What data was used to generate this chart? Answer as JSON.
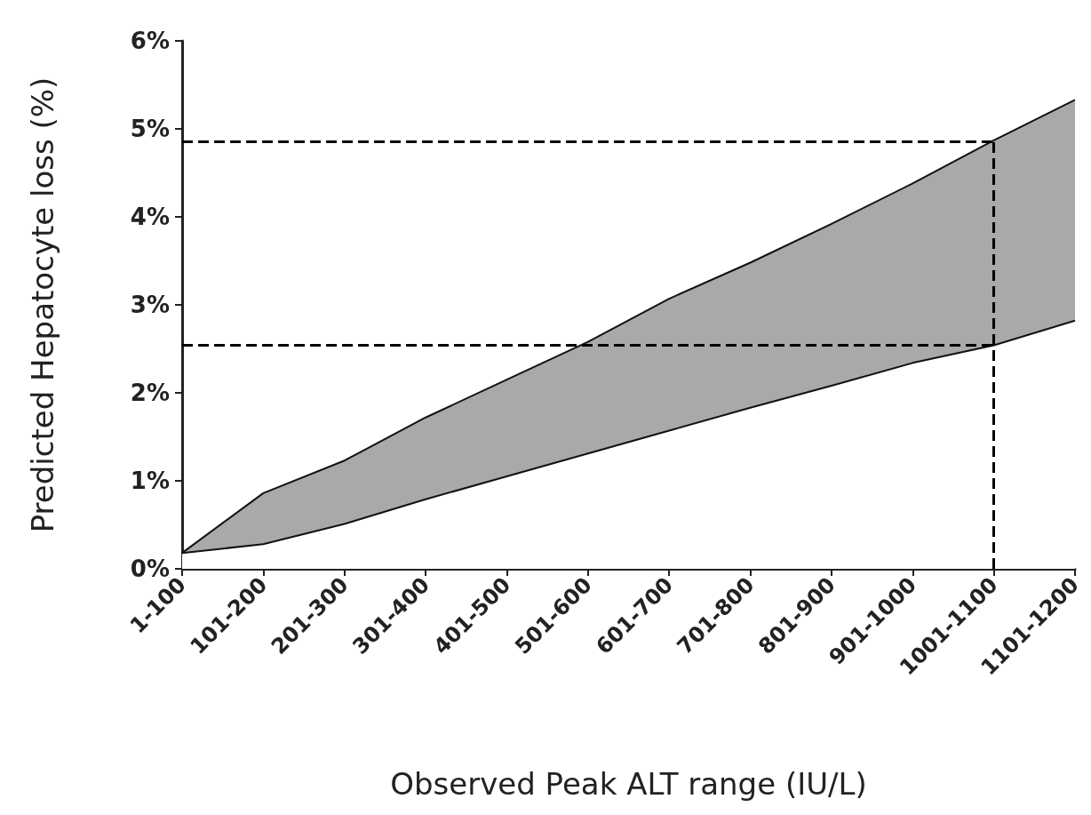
{
  "chart_data": {
    "type": "area",
    "xlabel": "Observed Peak ALT range (IU/L)",
    "ylabel": "Predicted Hepatocyte loss (%)",
    "categories": [
      "1-100",
      "101-200",
      "201-300",
      "301-400",
      "401-500",
      "501-600",
      "601-700",
      "701-800",
      "801-900",
      "901-1000",
      "1001-1100",
      "1101-1200"
    ],
    "series": [
      {
        "color": "#a9a9a9",
        "values": [
          0.18,
          0.86,
          1.23,
          1.72,
          2.15,
          2.58,
          3.07,
          3.48,
          3.92,
          4.38,
          4.87,
          5.33
        ]
      },
      {
        "color": "#ffffff",
        "values": [
          0.18,
          0.28,
          0.51,
          0.79,
          1.05,
          1.31,
          1.57,
          1.83,
          2.08,
          2.34,
          2.54,
          2.82
        ]
      }
    ],
    "ylim": [
      0,
      6
    ],
    "yticks": [
      {
        "value": 0,
        "label": "0%"
      },
      {
        "value": 1,
        "label": "1%"
      },
      {
        "value": 2,
        "label": "2%"
      },
      {
        "value": 3,
        "label": "3%"
      },
      {
        "value": 4,
        "label": "4%"
      },
      {
        "value": 5,
        "label": "5%"
      },
      {
        "value": 6,
        "label": "6%"
      }
    ],
    "ref_lines": [
      {
        "axis": "y",
        "value": 4.86,
        "line_style": "dashed",
        "color": "#000000"
      },
      {
        "axis": "y",
        "value": 2.54,
        "line_style": "dashed",
        "color": "#000000"
      },
      {
        "axis": "x",
        "value": "1001-1100",
        "line_style": "dashed",
        "color": "#000000"
      }
    ],
    "grid": false
  }
}
